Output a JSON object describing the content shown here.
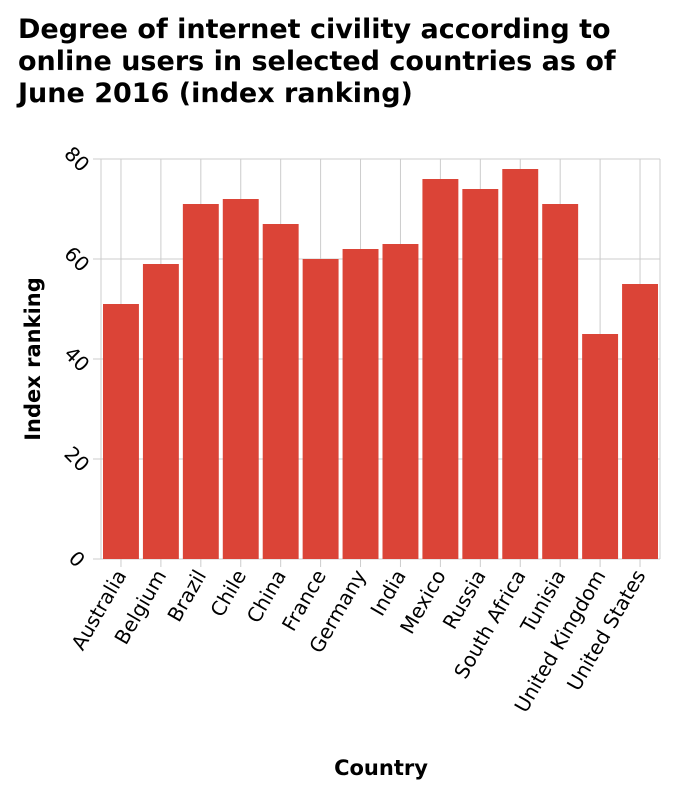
{
  "chart_data": {
    "type": "bar",
    "title": "Degree of internet civility according to online users in selected countries as of June 2016 (index ranking)",
    "xlabel": "Country",
    "ylabel": "Index ranking",
    "categories": [
      "Australia",
      "Belgium",
      "Brazil",
      "Chile",
      "China",
      "France",
      "Germany",
      "India",
      "Mexico",
      "Russia",
      "South Africa",
      "Tunisia",
      "United Kingdom",
      "United States"
    ],
    "values": [
      51,
      59,
      71,
      72,
      67,
      60,
      62,
      63,
      76,
      74,
      78,
      71,
      45,
      55
    ],
    "ylim": [
      0,
      80
    ],
    "yticks": [
      0,
      20,
      40,
      60,
      80
    ],
    "grid": true,
    "bar_color": "#db4437",
    "grid_color": "#cccccc"
  }
}
